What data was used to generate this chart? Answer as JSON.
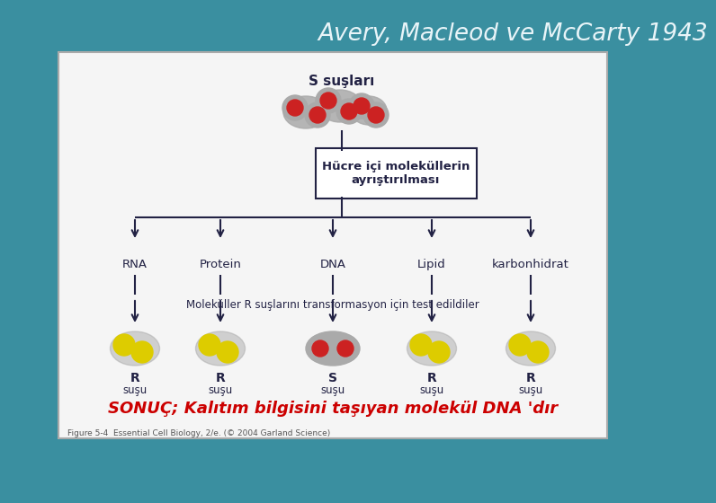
{
  "title": "Avery, Macleod ve McCarty 1943",
  "bg_color": "#3a8fa0",
  "panel_bg": "#f5f5f5",
  "title_color": "#e8f4f8",
  "s_label": "S suşları",
  "box_label": "Hücre içi moleküllerin\nayrıştırılması",
  "molecules": [
    "RNA",
    "Protein",
    "DNA",
    "Lipid",
    "karbonhidrat"
  ],
  "mol_text": "Moleküller R suşlarını transformasyon için test edildiler",
  "result_labels_top": [
    "R",
    "R",
    "S",
    "R",
    "R"
  ],
  "result_labels_bot": [
    "suşu",
    "suşu",
    "suşu",
    "suşu",
    "suşu"
  ],
  "conclusion": "SONUÇ; Kalıtım bilgisini taşıyan molekül DNA 'dır",
  "conclusion_color": "#cc0000",
  "caption": "Figure 5-4  Essential Cell Biology, 2/e. (© 2004 Garland Science)",
  "line_color": "#222244",
  "cell_gray": "#aaaaaa",
  "cell_red": "#cc2222",
  "cell_yellow": "#ddcc00",
  "text_color": "#222244"
}
